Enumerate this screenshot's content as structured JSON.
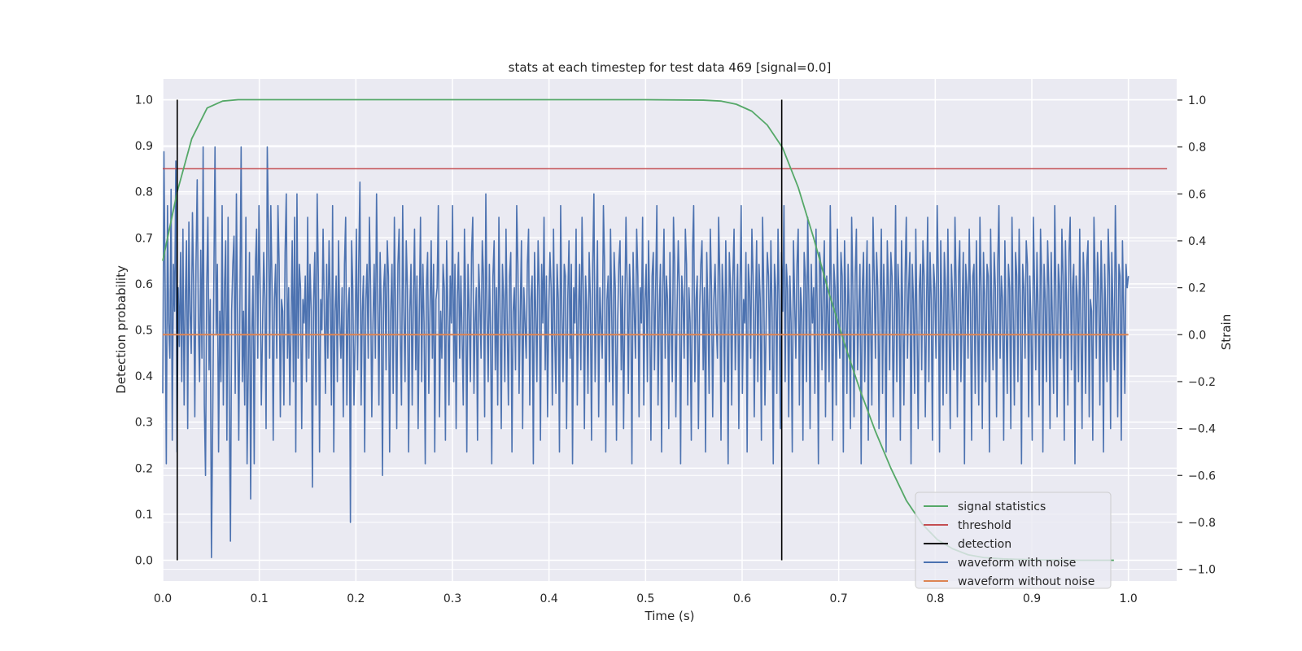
{
  "chart_data": {
    "type": "line",
    "title": "stats at each timestep for test data 469 [signal=0.0]",
    "xlabel": "Time (s)",
    "ylabel_left": "Detection probability",
    "ylabel_right": "Strain",
    "xlim": [
      0.0,
      1.05
    ],
    "ylim_left": [
      -0.045,
      1.045
    ],
    "ylim_right": [
      -1.05,
      1.09
    ],
    "xticks": [
      "0.0",
      "0.1",
      "0.2",
      "0.3",
      "0.4",
      "0.5",
      "0.6",
      "0.7",
      "0.8",
      "0.9",
      "1.0"
    ],
    "yticks_left": [
      "0.0",
      "0.1",
      "0.2",
      "0.3",
      "0.4",
      "0.5",
      "0.6",
      "0.7",
      "0.8",
      "0.9",
      "1.0"
    ],
    "yticks_right": [
      "−1.0",
      "−0.8",
      "−0.6",
      "−0.4",
      "−0.2",
      "0.0",
      "0.2",
      "0.4",
      "0.6",
      "0.8",
      "1.0"
    ],
    "grid": true,
    "legend_position": "lower-right",
    "colors": {
      "signal_statistics": "#55a868",
      "threshold": "#c44e52",
      "detection": "#000000",
      "waveform_with_noise": "#4c72b0",
      "waveform_without_noise": "#dd8452",
      "plot_background": "#eaeaf2",
      "grid": "#ffffff"
    },
    "series": [
      {
        "name": "signal statistics",
        "axis": "left",
        "x": [
          0.0,
          0.015,
          0.03,
          0.046,
          0.062,
          0.078,
          0.1,
          0.2,
          0.3,
          0.4,
          0.5,
          0.56,
          0.578,
          0.594,
          0.61,
          0.626,
          0.642,
          0.658,
          0.674,
          0.69,
          0.706,
          0.722,
          0.738,
          0.754,
          0.77,
          0.786,
          0.802,
          0.818,
          0.834,
          0.85,
          0.87,
          0.9,
          0.95,
          0.985
        ],
        "y": [
          0.65,
          0.8,
          0.915,
          0.982,
          0.997,
          1.0,
          1.0,
          1.0,
          1.0,
          1.0,
          1.0,
          0.999,
          0.997,
          0.99,
          0.975,
          0.945,
          0.895,
          0.81,
          0.7,
          0.58,
          0.47,
          0.37,
          0.28,
          0.2,
          0.13,
          0.08,
          0.045,
          0.025,
          0.012,
          0.006,
          0.003,
          0.001,
          0.0,
          0.0
        ]
      },
      {
        "name": "threshold",
        "axis": "left",
        "x": [
          0.0,
          1.04
        ],
        "y": [
          0.85,
          0.85
        ]
      },
      {
        "name": "detection",
        "axis": "left",
        "x_values": [
          0.015,
          0.641
        ],
        "ymin": 0.0,
        "ymax": 1.0
      },
      {
        "name": "waveform with noise",
        "axis": "right",
        "description_note": "",
        "x_start": 0.0,
        "x_end": 1.0,
        "samples": [
          -0.25,
          0.78,
          0.2,
          -0.55,
          0.55,
          0.05,
          -0.1,
          0.62,
          -0.45,
          0.3,
          0.1,
          0.74,
          -0.5,
          0.2,
          -0.05,
          0.35,
          -0.2,
          0.45,
          -0.3,
          0.14,
          0.4,
          -0.4,
          0.48,
          0.1,
          -0.08,
          0.52,
          0.22,
          -0.35,
          0.3,
          0.66,
          0.05,
          -0.2,
          0.36,
          -0.1,
          0.8,
          -0.3,
          -0.6,
          0.2,
          0.5,
          -0.15,
          0.15,
          -0.95,
          -0.4,
          0.22,
          0.8,
          0.0,
          0.3,
          -0.5,
          0.1,
          -0.2,
          0.55,
          -0.3,
          0.2,
          0.4,
          -0.45,
          0.5,
          -0.3,
          -0.88,
          0.1,
          0.3,
          0.42,
          -0.25,
          0.6,
          0.05,
          -0.45,
          0.15,
          0.8,
          -0.2,
          0.1,
          -0.3,
          0.5,
          -0.55,
          -0.15,
          0.35,
          -0.7,
          0.0,
          0.25,
          -0.55,
          0.3,
          0.45,
          -0.1,
          0.55,
          0.2,
          -0.3,
          0.02,
          0.35,
          0.15,
          -0.4,
          0.8,
          0.45,
          -0.1,
          0.55,
          0.2,
          -0.45,
          0.15,
          0.3,
          -0.1,
          0.55,
          0.3,
          -0.35,
          0.15,
          0.1,
          -0.3,
          0.35,
          0.6,
          -0.1,
          0.2,
          -0.3,
          0.05,
          0.4,
          -0.2,
          0.5,
          -0.5,
          0.6,
          -0.1,
          0.3,
          0.2,
          -0.4,
          0.15,
          0.05,
          0.25,
          -0.2,
          0.5,
          -0.1,
          0.3,
          0.1,
          -0.65,
          0.15,
          0.35,
          -0.3,
          0.6,
          0.25,
          -0.5,
          0.15,
          0.02,
          0.45,
          0.1,
          -0.25,
          0.3,
          -0.1,
          0.4,
          0.15,
          -0.3,
          0.55,
          -0.5,
          0.1,
          0.25,
          -0.2,
          0.4,
          0.05,
          -0.1,
          0.2,
          -0.35,
          0.3,
          0.5,
          -0.3,
          0.1,
          0.2,
          -0.8,
          0.4,
          0.2,
          -0.3,
          0.0,
          0.45,
          -0.15,
          0.3,
          0.65,
          -0.3,
          0.1,
          0.25,
          -0.5,
          0.15,
          0.3,
          -0.1,
          0.5,
          0.2,
          -0.35,
          0.05,
          0.3,
          -0.1,
          0.6,
          0.15,
          -0.3,
          0.35,
          0.1,
          -0.6,
          0.2,
          0.3,
          -0.15,
          0.4,
          0.25,
          -0.5,
          0.1,
          0.3,
          -0.25,
          0.5,
          0.1,
          -0.4,
          0.3,
          0.45,
          0.0,
          -0.3,
          0.55,
          0.1,
          -0.2,
          0.4,
          0.2,
          -0.5,
          0.1,
          0.3,
          -0.3,
          0.15,
          0.45,
          -0.15,
          0.25,
          -0.4,
          0.1,
          0.5,
          -0.2,
          0.3,
          0.05,
          -0.55,
          0.2,
          0.35,
          -0.25,
          0.1,
          0.4,
          -0.1,
          0.3,
          -0.5,
          0.15,
          0.2,
          0.55,
          -0.35,
          0.1,
          -0.1,
          0.3,
          0.2,
          -0.45,
          0.4,
          0.1,
          -0.3,
          0.25,
          0.05,
          0.55,
          -0.2,
          0.3,
          -0.4,
          0.15,
          0.35,
          -0.1,
          0.25,
          0.0,
          -0.3,
          0.45,
          0.15,
          -0.5,
          0.3,
          0.1,
          -0.2,
          0.35,
          0.5,
          -0.25,
          0.05,
          0.2,
          -0.45,
          0.3,
          0.15,
          -0.1,
          0.4,
          0.25,
          -0.35,
          0.6,
          0.1,
          -0.2,
          0.3,
          0.0,
          -0.55,
          0.25,
          0.4,
          -0.15,
          0.2,
          -0.3,
          0.5,
          0.1,
          -0.4,
          0.3,
          0.15,
          -0.2,
          0.45,
          0.05,
          -0.3,
          0.25,
          0.35,
          -0.5,
          0.1,
          0.2,
          -0.15,
          0.55,
          0.3,
          -0.25,
          0.1,
          0.4,
          -0.4,
          0.2,
          0.05,
          -0.1,
          0.3,
          0.45,
          -0.3,
          0.15,
          0.25,
          -0.55,
          0.35,
          0.1,
          -0.2,
          0.4,
          0.2,
          -0.45,
          0.3,
          0.05,
          0.5,
          -0.15,
          0.25,
          -0.35,
          0.1,
          0.35,
          0.2,
          -0.3,
          0.45,
          0.0,
          -0.25,
          0.3,
          0.15,
          -0.5,
          0.55,
          0.1,
          -0.2,
          0.3,
          0.25,
          -0.4,
          0.15,
          0.4,
          -0.1,
          0.3,
          -0.55,
          0.2,
          0.05,
          0.45,
          -0.3,
          0.1,
          0.3,
          -0.15,
          0.5,
          0.2,
          -0.4,
          0.25,
          0.1,
          -0.25,
          0.35,
          0.15,
          -0.45,
          0.3,
          0.6,
          -0.2,
          0.1,
          0.4,
          -0.35,
          0.2,
          0.05,
          -0.1,
          0.55,
          0.3,
          -0.5,
          0.15,
          0.25,
          -0.2,
          0.45,
          0.1,
          -0.3,
          0.35,
          0.2,
          -0.45,
          0.05,
          0.3,
          0.4,
          -0.15,
          0.25,
          -0.4,
          0.1,
          0.5,
          0.2,
          -0.25,
          0.3,
          0.15,
          -0.55,
          0.35,
          0.1,
          -0.1,
          0.45,
          0.25,
          -0.35,
          0.2,
          0.05,
          0.5,
          -0.3,
          0.15,
          0.3,
          -0.2,
          0.4,
          0.1,
          -0.45,
          0.25,
          0.35,
          -0.15,
          0.2,
          0.55,
          -0.3,
          0.1,
          0.3,
          -0.5,
          0.2,
          0.45,
          -0.1,
          0.25,
          0.15,
          -0.4,
          0.35,
          0.05,
          -0.2,
          0.5,
          0.3,
          -0.35,
          0.1,
          0.4,
          0.2,
          -0.55,
          0.25,
          0.15,
          -0.1,
          0.45,
          0.3,
          -0.3,
          0.2,
          0.05,
          -0.45,
          0.35,
          0.55,
          -0.2,
          0.15,
          0.25,
          -0.4,
          0.1,
          0.3,
          0.4,
          -0.15,
          0.2,
          -0.5,
          0.35,
          0.1,
          -0.25,
          0.45,
          0.2,
          -0.35,
          0.15,
          0.3,
          0.05,
          -0.1,
          0.5,
          0.25,
          -0.45,
          0.3,
          0.15,
          -0.2,
          0.4,
          0.1,
          -0.55,
          0.35,
          0.2,
          -0.3,
          0.25,
          0.45,
          -0.15,
          0.1,
          0.3,
          -0.4,
          0.2,
          0.55,
          -0.25,
          0.15,
          0.05,
          0.35,
          -0.5,
          0.3,
          0.2,
          -0.1,
          0.45,
          0.25,
          -0.35,
          0.1,
          0.4,
          -0.2,
          0.3,
          0.15,
          -0.45,
          0.5,
          0.2,
          -0.3,
          0.05,
          0.35,
          0.25,
          -0.15,
          0.4,
          0.1,
          -0.55,
          0.3,
          0.2,
          -0.25,
          0.45,
          0.15,
          -0.4,
          0.35,
          0.1,
          0.55,
          -0.2,
          0.3,
          0.2,
          -0.35,
          0.25,
          0.05,
          -0.5,
          0.4,
          0.15,
          -0.1,
          0.3,
          0.45,
          -0.3,
          0.2,
          0.1,
          -0.45,
          0.35,
          0.25,
          -0.2,
          0.5,
          0.15,
          -0.4,
          0.3,
          0.05,
          0.2,
          -0.25,
          0.45,
          0.1,
          -0.55,
          0.35,
          0.3,
          -0.15,
          0.2,
          0.4,
          -0.35,
          0.25,
          0.1,
          -0.2,
          0.55,
          0.15,
          -0.45,
          0.3,
          0.2,
          -0.3,
          0.45,
          0.05,
          -0.1,
          0.35,
          0.25,
          -0.5,
          0.4,
          0.15,
          -0.25,
          0.3,
          0.1,
          -0.4,
          0.5,
          0.2,
          -0.35,
          0.25,
          0.45,
          -0.15,
          0.1,
          0.3,
          -0.55,
          0.2,
          0.35,
          -0.2,
          0.15,
          0.4,
          -0.45,
          0.3,
          0.05,
          -0.3,
          0.5,
          0.25,
          -0.1,
          0.35,
          0.2,
          -0.4,
          0.15,
          0.45,
          -0.25,
          0.3,
          0.1,
          -0.5,
          0.4,
          0.2,
          -0.15,
          0.35,
          0.25,
          -0.35,
          0.05,
          0.55,
          -0.2,
          0.3,
          0.15,
          -0.45,
          0.4,
          0.1,
          -0.3,
          0.25,
          0.5,
          -0.1,
          0.2,
          0.35,
          -0.55,
          0.3,
          0.15,
          -0.25,
          0.45,
          0.05,
          -0.4,
          0.2,
          0.3,
          -0.15,
          0.4,
          0.25,
          -0.35,
          0.1,
          0.5,
          -0.2,
          0.35,
          0.15,
          -0.45,
          0.3,
          0.2,
          -0.1,
          0.55,
          0.25,
          -0.5,
          0.4,
          0.1,
          -0.3,
          0.35,
          0.2,
          -0.25,
          0.45,
          0.05,
          -0.4,
          0.3,
          0.15,
          -0.15,
          0.5,
          0.2,
          -0.35,
          0.25,
          0.4,
          -0.2,
          0.1,
          0.35,
          -0.55,
          0.3,
          0.2,
          -0.1,
          0.45,
          0.15,
          -0.45,
          0.25,
          0.3,
          -0.25,
          0.4,
          0.05,
          -0.3,
          0.5,
          0.2,
          -0.4,
          0.35,
          0.15,
          -0.2,
          0.3,
          0.25,
          -0.5,
          0.45,
          0.1,
          -0.15,
          0.35,
          0.2,
          -0.35,
          0.3,
          0.55,
          -0.1,
          0.25,
          0.15,
          -0.45,
          0.4,
          0.05,
          -0.25,
          0.3,
          0.2,
          -0.4,
          0.5,
          0.1,
          -0.3,
          0.35,
          0.25,
          -0.2,
          0.45,
          0.15,
          -0.55,
          0.3,
          0.2,
          -0.1,
          0.4,
          0.3,
          -0.35,
          0.25,
          0.05,
          -0.45,
          0.5,
          0.2,
          -0.15,
          0.35,
          0.1,
          -0.3,
          0.45,
          0.25,
          -0.5,
          0.3,
          0.15,
          -0.2,
          0.4,
          0.2,
          -0.4,
          0.35,
          0.05,
          -0.25,
          0.55,
          0.15,
          -0.35,
          0.3,
          0.2,
          -0.1,
          0.45,
          0.25,
          -0.45,
          0.4,
          0.1,
          -0.3,
          0.35,
          0.5,
          -0.15,
          0.2,
          0.3,
          -0.55,
          0.25,
          0.15,
          -0.2,
          0.45,
          0.05,
          -0.4,
          0.35,
          0.2,
          -0.25,
          0.3,
          0.4,
          -0.35,
          0.15,
          0.1,
          -0.45,
          0.5,
          0.25,
          -0.1,
          0.35,
          0.2,
          -0.3,
          0.4,
          0.15,
          -0.5,
          0.3,
          0.05,
          -0.2,
          0.45,
          0.25,
          -0.4,
          0.35,
          0.1,
          -0.15,
          0.55,
          0.2,
          -0.35,
          0.3,
          0.25,
          -0.45,
          0.4,
          0.1,
          -0.25,
          0.3,
          0.2,
          0.25
        ],
        "samples_scale_note": ""
      },
      {
        "name": "waveform without noise",
        "axis": "right",
        "x": [
          0.0,
          1.0
        ],
        "y": [
          0.0,
          0.0
        ]
      }
    ],
    "legend": [
      "signal statistics",
      "threshold",
      "detection",
      "waveform with noise",
      "waveform without noise"
    ]
  }
}
